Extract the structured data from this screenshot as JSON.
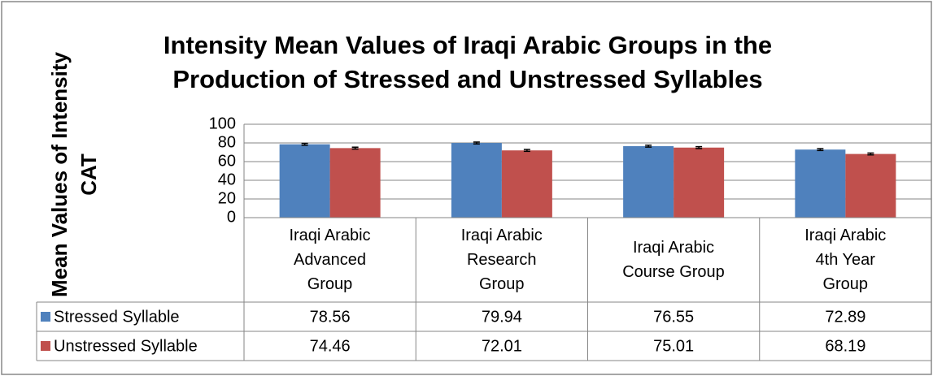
{
  "chart_data": {
    "type": "bar",
    "title": [
      "Intensity Mean Values of Iraqi Arabic Groups in the",
      "Production of Stressed and Unstressed Syllables"
    ],
    "ylabel": [
      "Mean Values of Intensity",
      "CAT"
    ],
    "categories": [
      "Iraqi Arabic Advanced Group",
      "Iraqi Arabic Research Group",
      "Iraqi Arabic Course Group",
      "Iraqi Arabic 4th Year Group"
    ],
    "series": [
      {
        "name": "Stressed Syllable",
        "color": "#4f81bd",
        "values": [
          78.56,
          79.94,
          76.55,
          72.89
        ],
        "errors": [
          1,
          1,
          1,
          1
        ]
      },
      {
        "name": "Unstressed Syllable",
        "color": "#c0504d",
        "values": [
          74.46,
          72.01,
          75.01,
          68.19
        ],
        "errors": [
          1,
          1,
          1,
          1
        ]
      }
    ],
    "ylim": [
      0,
      100
    ],
    "yticks": [
      0,
      20,
      40,
      60,
      80,
      100
    ],
    "grid": true,
    "data_table": true
  }
}
